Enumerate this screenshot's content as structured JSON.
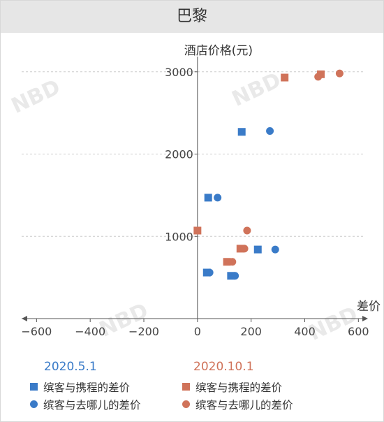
{
  "header": {
    "title": "巴黎"
  },
  "colors": {
    "blue": "#3a7bc8",
    "orange": "#d0735a",
    "axis": "#555555",
    "grid": "#cccccc",
    "header_bg": "#e6e6e6"
  },
  "watermark": "NBD",
  "chart_data": {
    "type": "scatter",
    "ylabel": "酒店价格(元)",
    "xlabel": "差价",
    "xlim": [
      -640,
      620
    ],
    "ylim": [
      0,
      3100
    ],
    "x_ticks": [
      -600,
      -400,
      -200,
      0,
      200,
      400,
      600
    ],
    "y_ticks": [
      1000,
      2000,
      3000
    ],
    "grid": "horizontal dashed",
    "legend": [
      {
        "period": "2020.5.1",
        "color": "#3a7bc8",
        "items": [
          {
            "marker": "square",
            "label": "缤客与携程的差价"
          },
          {
            "marker": "circle",
            "label": "缤客与去哪儿的差价"
          }
        ]
      },
      {
        "period": "2020.10.1",
        "color": "#d0735a",
        "items": [
          {
            "marker": "square",
            "label": "缤客与携程的差价"
          },
          {
            "marker": "circle",
            "label": "缤客与去哪儿的差价"
          }
        ]
      }
    ],
    "series": [
      {
        "period": "2020.5.1",
        "comparison": "携程",
        "marker": "square",
        "color": "#3a7bc8",
        "points": [
          [
            165,
            2270
          ],
          [
            40,
            1470
          ],
          [
            225,
            840
          ],
          [
            35,
            560
          ],
          [
            125,
            520
          ]
        ]
      },
      {
        "period": "2020.5.1",
        "comparison": "去哪儿",
        "marker": "circle",
        "color": "#3a7bc8",
        "points": [
          [
            270,
            2280
          ],
          [
            75,
            1470
          ],
          [
            290,
            840
          ],
          [
            45,
            560
          ],
          [
            140,
            520
          ]
        ]
      },
      {
        "period": "2020.10.1",
        "comparison": "携程",
        "marker": "square",
        "color": "#d0735a",
        "points": [
          [
            325,
            2930
          ],
          [
            460,
            2970
          ],
          [
            0,
            1070
          ],
          [
            160,
            850
          ],
          [
            110,
            690
          ]
        ]
      },
      {
        "period": "2020.10.1",
        "comparison": "去哪儿",
        "marker": "circle",
        "color": "#d0735a",
        "points": [
          [
            450,
            2940
          ],
          [
            530,
            2980
          ],
          [
            185,
            1070
          ],
          [
            175,
            850
          ],
          [
            130,
            690
          ]
        ]
      }
    ]
  }
}
